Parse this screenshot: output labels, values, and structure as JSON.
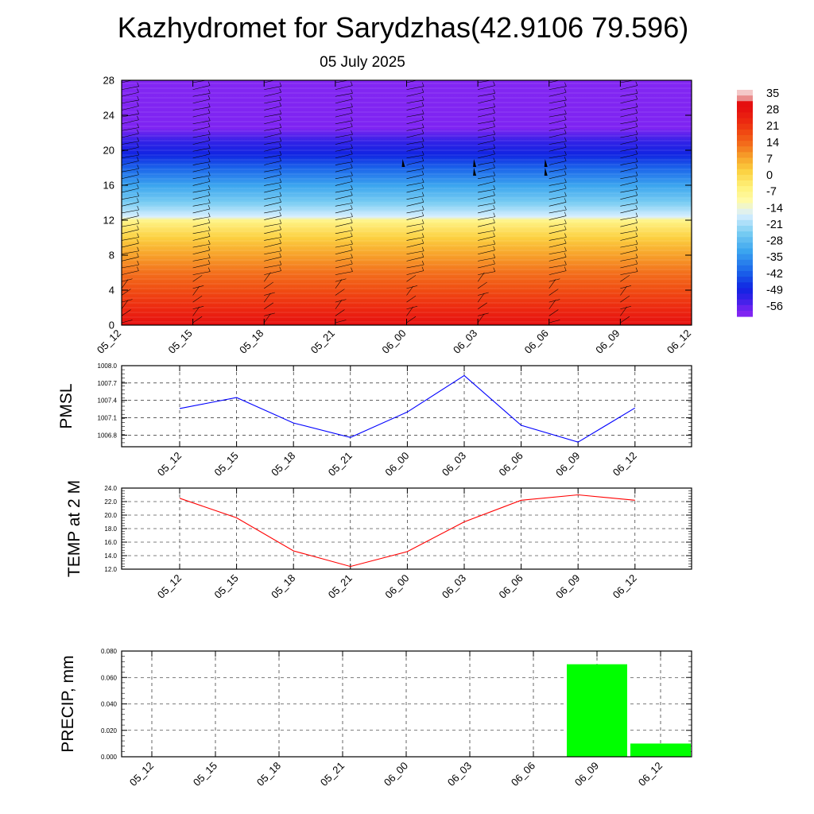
{
  "title": "Kazhydromet for Sarydzhas(42.9106 79.596)",
  "subtitle": "05 July 2025",
  "chart_data": [
    {
      "type": "heatmap",
      "description_free": true,
      "x_ticks": [
        "05_12",
        "05_15",
        "05_18",
        "05_21",
        "06_00",
        "06_03",
        "06_06",
        "06_09",
        "06_12"
      ],
      "y_ticks": [
        "0",
        "4",
        "8",
        "12",
        "16",
        "20",
        "24",
        "28"
      ],
      "ylim": [
        0,
        28
      ],
      "level_gradient": [
        {
          "y": 0,
          "value": 30
        },
        {
          "y": 2,
          "value": 24
        },
        {
          "y": 4,
          "value": 19
        },
        {
          "y": 6,
          "value": 14
        },
        {
          "y": 8,
          "value": 9
        },
        {
          "y": 10,
          "value": 3
        },
        {
          "y": 12,
          "value": -6
        },
        {
          "y": 12.4,
          "value": -16
        },
        {
          "y": 14,
          "value": -24
        },
        {
          "y": 16,
          "value": -32
        },
        {
          "y": 18,
          "value": -41
        },
        {
          "y": 19.5,
          "value": -48
        },
        {
          "y": 21,
          "value": -52
        },
        {
          "y": 22.5,
          "value": -58
        },
        {
          "y": 28,
          "value": -60
        }
      ],
      "colorbar_labels": [
        "35",
        "28",
        "21",
        "14",
        "7",
        "0",
        "-7",
        "-14",
        "-21",
        "-28",
        "-35",
        "-42",
        "-49",
        "-56"
      ],
      "colorbar_colors": [
        "#f0c0c0",
        "#e02020",
        "#e63a14",
        "#f06010",
        "#f6901a",
        "#fcc030",
        "#fff080",
        "#dfeeff",
        "#80d0f4",
        "#40b0f0",
        "#2080ee",
        "#1444e6",
        "#2820e8",
        "#7a22f0"
      ],
      "wind_barb_columns_x": [
        "05_12",
        "05_15",
        "05_18",
        "05_21",
        "06_00",
        "06_03",
        "06_06",
        "06_09",
        "06_12"
      ]
    },
    {
      "type": "line",
      "ylabel": "PMSL",
      "x": [
        "05_12",
        "05_15",
        "05_18",
        "05_21",
        "06_00",
        "06_03",
        "06_06",
        "06_09",
        "06_12"
      ],
      "values": [
        1007.26,
        1007.45,
        1007.01,
        1006.76,
        1007.2,
        1007.83,
        1006.97,
        1006.68,
        1007.27
      ],
      "ylim": [
        1006.6,
        1008.0
      ],
      "y_ticks": [
        "1006.8",
        "1007.1",
        "1007.4",
        "1007.7",
        "1008.0"
      ],
      "color": "#0000ff"
    },
    {
      "type": "line",
      "ylabel": "TEMP at 2 M",
      "x": [
        "05_12",
        "05_15",
        "05_18",
        "05_21",
        "06_00",
        "06_03",
        "06_06",
        "06_09",
        "06_12"
      ],
      "values": [
        22.5,
        19.6,
        14.7,
        12.4,
        14.6,
        19.0,
        22.2,
        23.0,
        22.2
      ],
      "ylim": [
        12.0,
        24.0
      ],
      "y_ticks": [
        "12.0",
        "14.0",
        "16.0",
        "18.0",
        "20.0",
        "22.0",
        "24.0"
      ],
      "color": "#ff0000"
    },
    {
      "type": "bar",
      "ylabel": "PRECIP, mm",
      "categories": [
        "05_12",
        "05_15",
        "05_18",
        "05_21",
        "06_00",
        "06_03",
        "06_06",
        "06_09",
        "06_12"
      ],
      "values": [
        0,
        0,
        0,
        0,
        0,
        0,
        0,
        0.07,
        0.01
      ],
      "ylim": [
        0,
        0.08
      ],
      "y_ticks": [
        "0.000",
        "0.020",
        "0.040",
        "0.060",
        "0.080"
      ],
      "color": "#00ff00"
    }
  ]
}
